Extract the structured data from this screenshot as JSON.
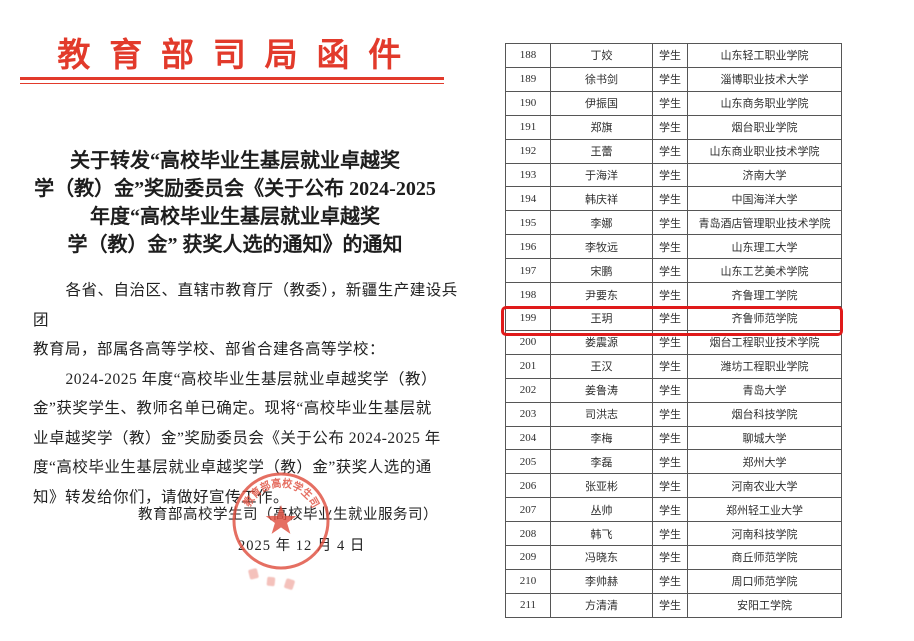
{
  "document": {
    "letterhead": "教 育 部 司 局 函 件",
    "title_lines": [
      "关于转发“高校毕业生基层就业卓越奖",
      "学（教）金”奖励委员会《关于公布 2024-2025",
      "年度“高校毕业生基层就业卓越奖",
      "学（教）金” 获奖人选的通知》的通知"
    ],
    "salutation_lines": [
      "各省、自治区、直辖市教育厅（教委），新疆生产建设兵团",
      "教育局，部属各高等学校、部省合建各高等学校："
    ],
    "paragraph_lines": [
      "2024-2025 年度“高校毕业生基层就业卓越奖学（教）",
      "金”获奖学生、教师名单已确定。现将“高校毕业生基层就",
      "业卓越奖学（教）金”奖励委员会《关于公布 2024-2025 年",
      "度“高校毕业生基层就业卓越奖学（教）金”获奖人选的通",
      "知》转发给你们，请做好宣传工作。"
    ],
    "signer": "教育部高校学生司（高校毕业生就业服务司）",
    "date": "2025 年 12 月 4 日",
    "seal_text": "教育部高校学生司"
  },
  "table": {
    "highlighted_no": "199",
    "rows": [
      [
        "188",
        "丁姣",
        "学生",
        "山东轻工职业学院"
      ],
      [
        "189",
        "徐书剑",
        "学生",
        "淄博职业技术大学"
      ],
      [
        "190",
        "伊振国",
        "学生",
        "山东商务职业学院"
      ],
      [
        "191",
        "郑旗",
        "学生",
        "烟台职业学院"
      ],
      [
        "192",
        "王蕾",
        "学生",
        "山东商业职业技术学院"
      ],
      [
        "193",
        "于海洋",
        "学生",
        "济南大学"
      ],
      [
        "194",
        "韩庆祥",
        "学生",
        "中国海洋大学"
      ],
      [
        "195",
        "李娜",
        "学生",
        "青岛酒店管理职业技术学院"
      ],
      [
        "196",
        "李牧远",
        "学生",
        "山东理工大学"
      ],
      [
        "197",
        "宋鹏",
        "学生",
        "山东工艺美术学院"
      ],
      [
        "198",
        "尹要东",
        "学生",
        "齐鲁理工学院"
      ],
      [
        "199",
        "王玥",
        "学生",
        "齐鲁师范学院"
      ],
      [
        "200",
        "娄震源",
        "学生",
        "烟台工程职业技术学院"
      ],
      [
        "201",
        "王汉",
        "学生",
        "潍坊工程职业学院"
      ],
      [
        "202",
        "姜鲁涛",
        "学生",
        "青岛大学"
      ],
      [
        "203",
        "司洪志",
        "学生",
        "烟台科技学院"
      ],
      [
        "204",
        "李梅",
        "学生",
        "聊城大学"
      ],
      [
        "205",
        "李磊",
        "学生",
        "郑州大学"
      ],
      [
        "206",
        "张亚彬",
        "学生",
        "河南农业大学"
      ],
      [
        "207",
        "丛帅",
        "学生",
        "郑州轻工业大学"
      ],
      [
        "208",
        "韩飞",
        "学生",
        "河南科技学院"
      ],
      [
        "209",
        "冯晓东",
        "学生",
        "商丘师范学院"
      ],
      [
        "210",
        "李帅赫",
        "学生",
        "周口师范学院"
      ],
      [
        "211",
        "方清清",
        "学生",
        "安阳工学院"
      ]
    ]
  },
  "colors": {
    "letterhead_red": "#e23a2b",
    "highlight_red": "#e01a1a",
    "seal_red": "#e05040",
    "table_border": "#565656",
    "ink": "#262626"
  }
}
